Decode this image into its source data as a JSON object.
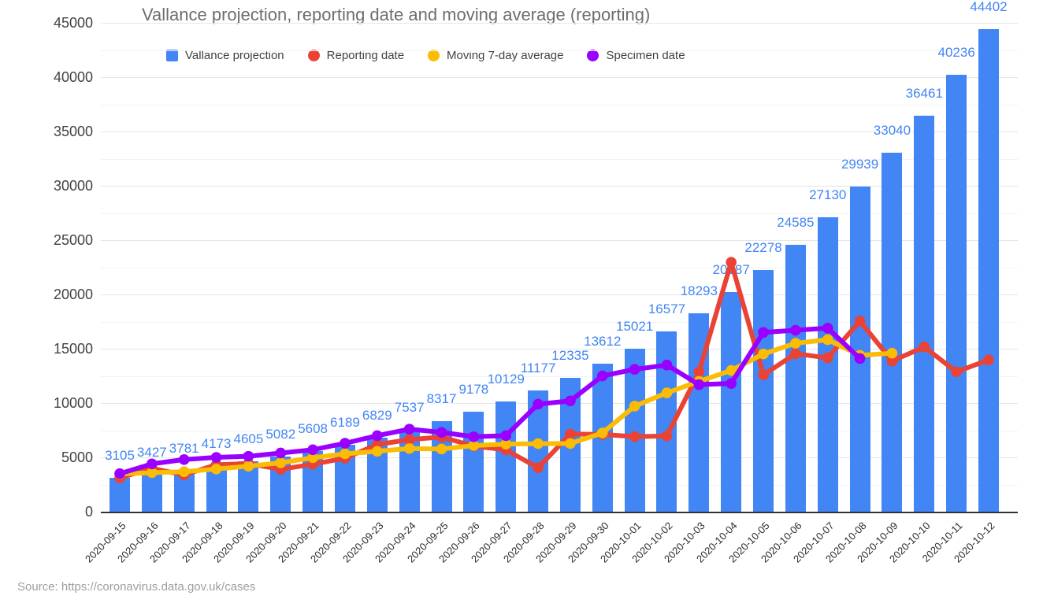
{
  "page": {
    "title": "Vallance projection, reporting date and moving average (reporting)",
    "source": "Source: https://coronavirus.data.gov.uk/cases"
  },
  "legend": {
    "position": "top",
    "items": [
      {
        "label": "Vallance projection",
        "color": "#4285f4",
        "shape": "square"
      },
      {
        "label": "Reporting date",
        "color": "#ea4335",
        "shape": "circle"
      },
      {
        "label": "Moving 7-day average",
        "color": "#fbbc04",
        "shape": "circle"
      },
      {
        "label": "Specimen date",
        "color": "#9900ff",
        "shape": "circle"
      }
    ]
  },
  "axis": {
    "y_ticks": [
      "0",
      "5000",
      "10000",
      "15000",
      "20000",
      "25000",
      "30000",
      "35000",
      "40000",
      "45000"
    ],
    "y_tick_values": [
      0,
      5000,
      10000,
      15000,
      20000,
      25000,
      30000,
      35000,
      40000,
      45000
    ]
  },
  "colors": {
    "bar_blue": "#4285f4",
    "reporting_red": "#ea4335",
    "moving_avg_yellow": "#fbbc04",
    "specimen_purple": "#9900ff",
    "value_label_blue": "#4285f4",
    "grid_major": "#e6e6e6",
    "grid_minor": "#f2f2f2",
    "axis_baseline": "#333333",
    "title_gray": "#6e6e6e",
    "source_gray": "#9e9e9e"
  },
  "chart_data": {
    "type": "bar",
    "subtype": "combo bar+line",
    "title": "Vallance projection, reporting date and moving average (reporting)",
    "xlabel": "",
    "ylabel": "",
    "ylim": [
      0,
      45000
    ],
    "y_tick_step": 5000,
    "grid": "major 5000 + minor 2500",
    "legend_position": "top",
    "categories": [
      "2020-09-15",
      "2020-09-16",
      "2020-09-17",
      "2020-09-18",
      "2020-09-19",
      "2020-09-20",
      "2020-09-21",
      "2020-09-22",
      "2020-09-23",
      "2020-09-24",
      "2020-09-25",
      "2020-09-26",
      "2020-09-27",
      "2020-09-28",
      "2020-09-29",
      "2020-09-30",
      "2020-10-01",
      "2020-10-02",
      "2020-10-03",
      "2020-10-04",
      "2020-10-05",
      "2020-10-06",
      "2020-10-07",
      "2020-10-08",
      "2020-10-09",
      "2020-10-10",
      "2020-10-11",
      "2020-10-12"
    ],
    "series": [
      {
        "name": "Vallance projection",
        "type": "bar",
        "color": "#4285f4",
        "data_labels": true,
        "values": [
          3105,
          3427,
          3781,
          4173,
          4605,
          5082,
          5608,
          6189,
          6829,
          7537,
          8317,
          9178,
          10129,
          11177,
          12335,
          13612,
          15021,
          16577,
          18293,
          20187,
          22278,
          24585,
          27130,
          29939,
          33040,
          36461,
          40236,
          44402
        ]
      },
      {
        "name": "Reporting date",
        "type": "line",
        "color": "#ea4335",
        "values": [
          3105,
          3991,
          3395,
          4322,
          4422,
          3899,
          4368,
          4926,
          6178,
          6634,
          6874,
          6042,
          5693,
          4044,
          7143,
          7108,
          6914,
          6968,
          12872,
          22961,
          12594,
          14542,
          14162,
          17540,
          13864,
          15166,
          12872,
          13972
        ]
      },
      {
        "name": "Moving 7-day average",
        "type": "line",
        "color": "#fbbc04",
        "values": [
          3466,
          3598,
          3679,
          3929,
          4189,
          4501,
          4964,
          5329,
          5560,
          5816,
          5770,
          6087,
          6220,
          6260,
          6273,
          7249,
          9716,
          10937,
          11994,
          13002,
          14520,
          15505,
          15833,
          14391,
          14588,
          null,
          null,
          null
        ]
      },
      {
        "name": "Specimen date",
        "type": "line",
        "color": "#9900ff",
        "values": [
          3500,
          4400,
          4800,
          5000,
          5100,
          5400,
          5700,
          6300,
          7000,
          7600,
          7300,
          6900,
          7000,
          9900,
          10200,
          12500,
          13100,
          13500,
          11700,
          11800,
          16500,
          16700,
          16900,
          14100,
          null,
          null,
          null,
          null
        ]
      }
    ]
  }
}
